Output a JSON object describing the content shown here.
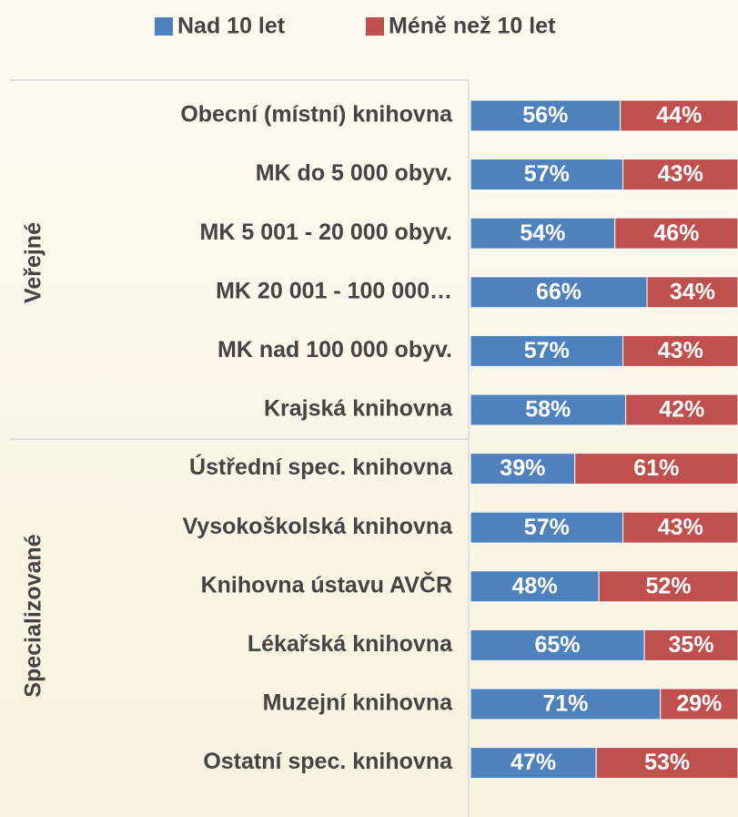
{
  "chart_data": {
    "type": "stacked_bar_horizontal",
    "categories": [
      "Obecní (místní) knihovna",
      "MK do 5 000 obyv.",
      "MK  5 001 - 20 000 obyv.",
      "MK 20 001 - 100 000…",
      "MK nad 100 000 obyv.",
      "Krajská knihovna",
      "Ústřední spec. knihovna",
      "Vysokoškolská knihovna",
      "Knihovna ústavu AVČR",
      "Lékařská knihovna",
      "Muzejní knihovna",
      "Ostatní spec. knihovna"
    ],
    "category_groups": [
      "Veřejné",
      "Veřejné",
      "Veřejné",
      "Veřejné",
      "Veřejné",
      "Veřejné",
      "Specializované",
      "Specializované",
      "Specializované",
      "Specializované",
      "Specializované",
      "Specializované"
    ],
    "series": [
      {
        "name": "Nad 10 let",
        "color": "#4f81bd",
        "values": [
          56,
          57,
          54,
          66,
          57,
          58,
          39,
          57,
          48,
          65,
          71,
          47
        ],
        "value_labels": [
          "56%",
          "57%",
          "54%",
          "66%",
          "57%",
          "58%",
          "39%",
          "57%",
          "48%",
          "65%",
          "71%",
          "47%"
        ]
      },
      {
        "name": "Méně než 10 let",
        "color": "#c0504d",
        "values": [
          44,
          43,
          46,
          34,
          43,
          42,
          61,
          43,
          52,
          35,
          29,
          53
        ],
        "value_labels": [
          "44%",
          "43%",
          "46%",
          "34%",
          "43%",
          "42%",
          "61%",
          "43%",
          "52%",
          "35%",
          "29%",
          "53%"
        ]
      }
    ],
    "xlim": [
      0,
      100
    ],
    "legend": "top"
  }
}
